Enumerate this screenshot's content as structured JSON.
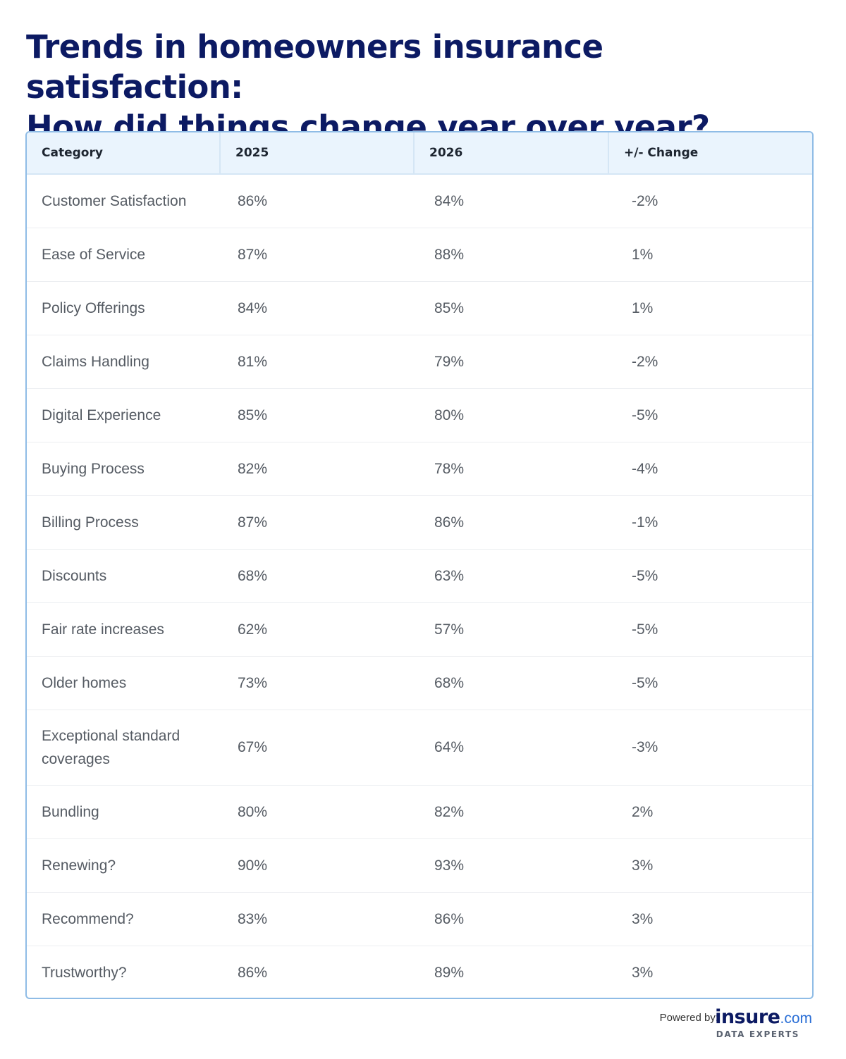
{
  "title": {
    "line1": "Trends in homeowners insurance satisfaction:",
    "line2": "How did things change year over year?"
  },
  "table": {
    "headers": [
      "Category",
      "2025",
      "2026",
      "+/- Change"
    ],
    "rows": [
      [
        "Customer Satisfaction",
        "86%",
        "84%",
        "-2%"
      ],
      [
        "Ease of Service",
        "87%",
        "88%",
        "1%"
      ],
      [
        "Policy Offerings",
        "84%",
        "85%",
        "1%"
      ],
      [
        "Claims Handling",
        "81%",
        "79%",
        "-2%"
      ],
      [
        "Digital Experience",
        "85%",
        "80%",
        "-5%"
      ],
      [
        "Buying Process",
        "82%",
        "78%",
        "-4%"
      ],
      [
        "Billing Process",
        "87%",
        "86%",
        "-1%"
      ],
      [
        "Discounts",
        "68%",
        "63%",
        "-5%"
      ],
      [
        "Fair rate increases",
        "62%",
        "57%",
        "-5%"
      ],
      [
        "Older homes",
        "73%",
        "68%",
        "-5%"
      ],
      [
        "Exceptional standard coverages",
        "67%",
        "64%",
        "-3%"
      ],
      [
        "Bundling",
        "80%",
        "82%",
        "2%"
      ],
      [
        "Renewing?",
        "90%",
        "93%",
        "3%"
      ],
      [
        "Recommend?",
        "83%",
        "86%",
        "3%"
      ],
      [
        "Trustworthy?",
        "86%",
        "89%",
        "3%"
      ]
    ]
  },
  "footer": {
    "powered_by": "Powered by:",
    "logo_main": "insure",
    "logo_domain": ".com",
    "logo_tagline": "DATA EXPERTS"
  },
  "colors": {
    "title": "#0c1a63",
    "header_bg": "#eaf4fd",
    "border": "#8fbce6",
    "body_text": "#555b63"
  }
}
